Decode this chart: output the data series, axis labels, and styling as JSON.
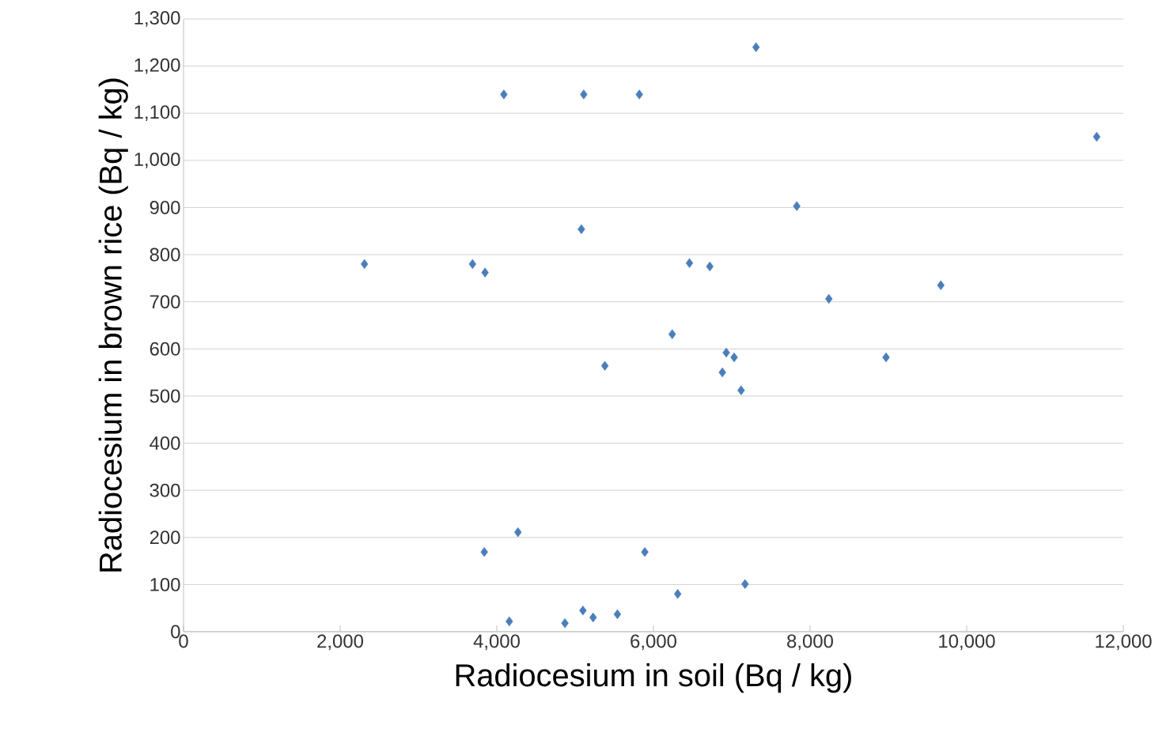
{
  "chart_data": {
    "type": "scatter",
    "xlabel": "Radiocesium in soil (Bq / kg)",
    "ylabel": "Radiocesium in brown rice (Bq / kg)",
    "xlim": [
      0,
      12000
    ],
    "ylim": [
      0,
      1300
    ],
    "xticks": [
      0,
      {
        "value": 2000,
        "label": "2,000"
      },
      {
        "value": 4000,
        "label": "4,000"
      },
      {
        "value": 6000,
        "label": "6,000"
      },
      {
        "value": 8000,
        "label": "8,000"
      },
      {
        "value": 10000,
        "label": "10,000"
      },
      {
        "value": 12000,
        "label": "12,000"
      }
    ],
    "yticks": [
      0,
      100,
      200,
      300,
      400,
      500,
      600,
      700,
      800,
      900,
      {
        "value": 1000,
        "label": "1,000"
      },
      {
        "value": 1100,
        "label": "1,100"
      },
      {
        "value": 1200,
        "label": "1,200"
      },
      {
        "value": 1300,
        "label": "1,300"
      }
    ],
    "grid": "y",
    "marker": "diamond",
    "series": [
      {
        "color": "#4a7ebb",
        "x": [
          2310,
          4090,
          5110,
          5820,
          7310,
          11660,
          7830,
          5080,
          3690,
          3850,
          6460,
          6720,
          8240,
          9670,
          6240,
          6930,
          7030,
          8970,
          5380,
          6880,
          7120,
          4270,
          3840,
          5890,
          7170,
          6310,
          4160,
          4870,
          5100,
          5230,
          5540
        ],
        "values": [
          780,
          1140,
          1140,
          1140,
          1240,
          1050,
          903,
          854,
          780,
          762,
          782,
          775,
          706,
          735,
          631,
          592,
          582,
          582,
          564,
          550,
          512,
          211,
          169,
          169,
          101,
          80,
          22,
          18,
          45,
          30,
          37
        ]
      }
    ]
  }
}
